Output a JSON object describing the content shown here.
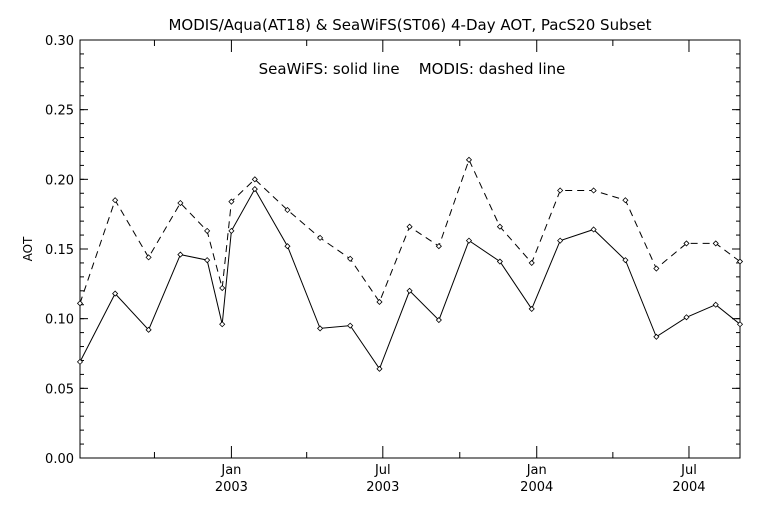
{
  "chart_data": {
    "type": "line",
    "title": "MODIS/Aqua(AT18) & SeaWiFS(ST06) 4-Day AOT, PacS20 Subset",
    "annotation": "SeaWiFS: solid line    MODIS: dashed line",
    "xlabel": "",
    "ylabel": "AOT",
    "ylim": [
      0.0,
      0.3
    ],
    "yticks": [
      "0.00",
      "0.05",
      "0.10",
      "0.15",
      "0.20",
      "0.25",
      "0.30"
    ],
    "xlim": [
      "2002-07-04",
      "2004-08-31"
    ],
    "xticks": [
      {
        "x": "2003-01-01",
        "top": "Jan",
        "bottom": "2003"
      },
      {
        "x": "2003-07-01",
        "top": "Jul",
        "bottom": "2003"
      },
      {
        "x": "2004-01-01",
        "top": "Jan",
        "bottom": "2004"
      },
      {
        "x": "2004-07-01",
        "top": "Jul",
        "bottom": "2004"
      }
    ],
    "grid": false,
    "colors": {
      "axis": "#000000",
      "series": "#000000",
      "background": "#ffffff"
    },
    "series": [
      {
        "name": "SeaWiFS",
        "style": "solid",
        "x": [
          "2002-07-04",
          "2002-08-15",
          "2002-09-24",
          "2002-11-01",
          "2002-12-03",
          "2002-12-21",
          "2003-01-01",
          "2003-01-29",
          "2003-03-09",
          "2003-04-17",
          "2003-05-23",
          "2003-06-27",
          "2003-08-02",
          "2003-09-06",
          "2003-10-12",
          "2003-11-18",
          "2003-12-26",
          "2004-01-29",
          "2004-03-09",
          "2004-04-16",
          "2004-05-23",
          "2004-06-28",
          "2004-08-02",
          "2004-08-31"
        ],
        "y": [
          0.069,
          0.118,
          0.092,
          0.146,
          0.142,
          0.096,
          0.163,
          0.193,
          0.152,
          0.093,
          0.095,
          0.064,
          0.12,
          0.099,
          0.156,
          0.141,
          0.107,
          0.156,
          0.164,
          0.142,
          0.087,
          0.101,
          0.11,
          0.096
        ]
      },
      {
        "name": "MODIS",
        "style": "dashed",
        "x": [
          "2002-07-04",
          "2002-08-15",
          "2002-09-24",
          "2002-11-01",
          "2002-12-03",
          "2002-12-21",
          "2003-01-01",
          "2003-01-29",
          "2003-03-09",
          "2003-04-17",
          "2003-05-23",
          "2003-06-27",
          "2003-08-02",
          "2003-09-06",
          "2003-10-12",
          "2003-11-18",
          "2003-12-26",
          "2004-01-29",
          "2004-03-09",
          "2004-04-16",
          "2004-05-23",
          "2004-06-28",
          "2004-08-02",
          "2004-08-31"
        ],
        "y": [
          0.111,
          0.185,
          0.144,
          0.183,
          0.163,
          0.122,
          0.184,
          0.2,
          0.178,
          0.158,
          0.143,
          0.112,
          0.166,
          0.152,
          0.214,
          0.166,
          0.14,
          0.192,
          0.192,
          0.185,
          0.136,
          0.154,
          0.154,
          0.141
        ]
      }
    ]
  }
}
